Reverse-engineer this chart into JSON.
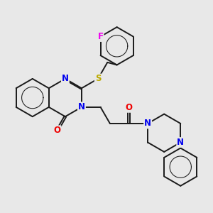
{
  "bg_color": "#e8e8e8",
  "bond_color": "#1a1a1a",
  "bond_width": 1.4,
  "atom_colors": {
    "N": "#0000ee",
    "O": "#ee0000",
    "S": "#bbaa00",
    "F": "#ee00ee",
    "C": "#1a1a1a"
  },
  "font_size": 8.5,
  "fig_size": [
    3.0,
    3.0
  ],
  "dpi": 100
}
